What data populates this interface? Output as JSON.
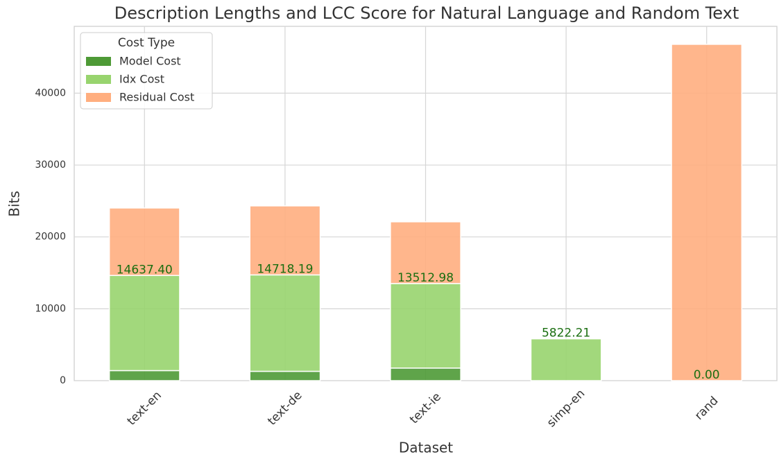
{
  "chart_data": {
    "type": "stacked_bar",
    "title": "Description Lengths and LCC Score for Natural Language and Random Text",
    "xlabel": "Dataset",
    "ylabel": "Bits",
    "categories": [
      "text-en",
      "text-de",
      "text-ie",
      "simp-en",
      "rand"
    ],
    "series": [
      {
        "name": "Model Cost",
        "color": "#4e9a36",
        "values": [
          1400,
          1300,
          1750,
          0,
          0
        ]
      },
      {
        "name": "Idx Cost",
        "color": "#98d46e",
        "values": [
          13237,
          13418,
          11763,
          5822,
          0
        ]
      },
      {
        "name": "Residual Cost",
        "color": "#ffae7f",
        "values": [
          9390,
          9600,
          8590,
          0,
          46800
        ]
      }
    ],
    "lcc_scores": [
      14637.4,
      14718.19,
      13512.98,
      5822.21,
      0
    ],
    "lcc_score_labels": [
      "14637.40",
      "14718.19",
      "13512.98",
      "5822.21",
      "0.00"
    ],
    "legend_title": "Cost Type",
    "legend": "upper left",
    "ylim": [
      0,
      49300
    ],
    "yticks": [
      0,
      10000,
      20000,
      30000,
      40000
    ],
    "grid": true
  }
}
